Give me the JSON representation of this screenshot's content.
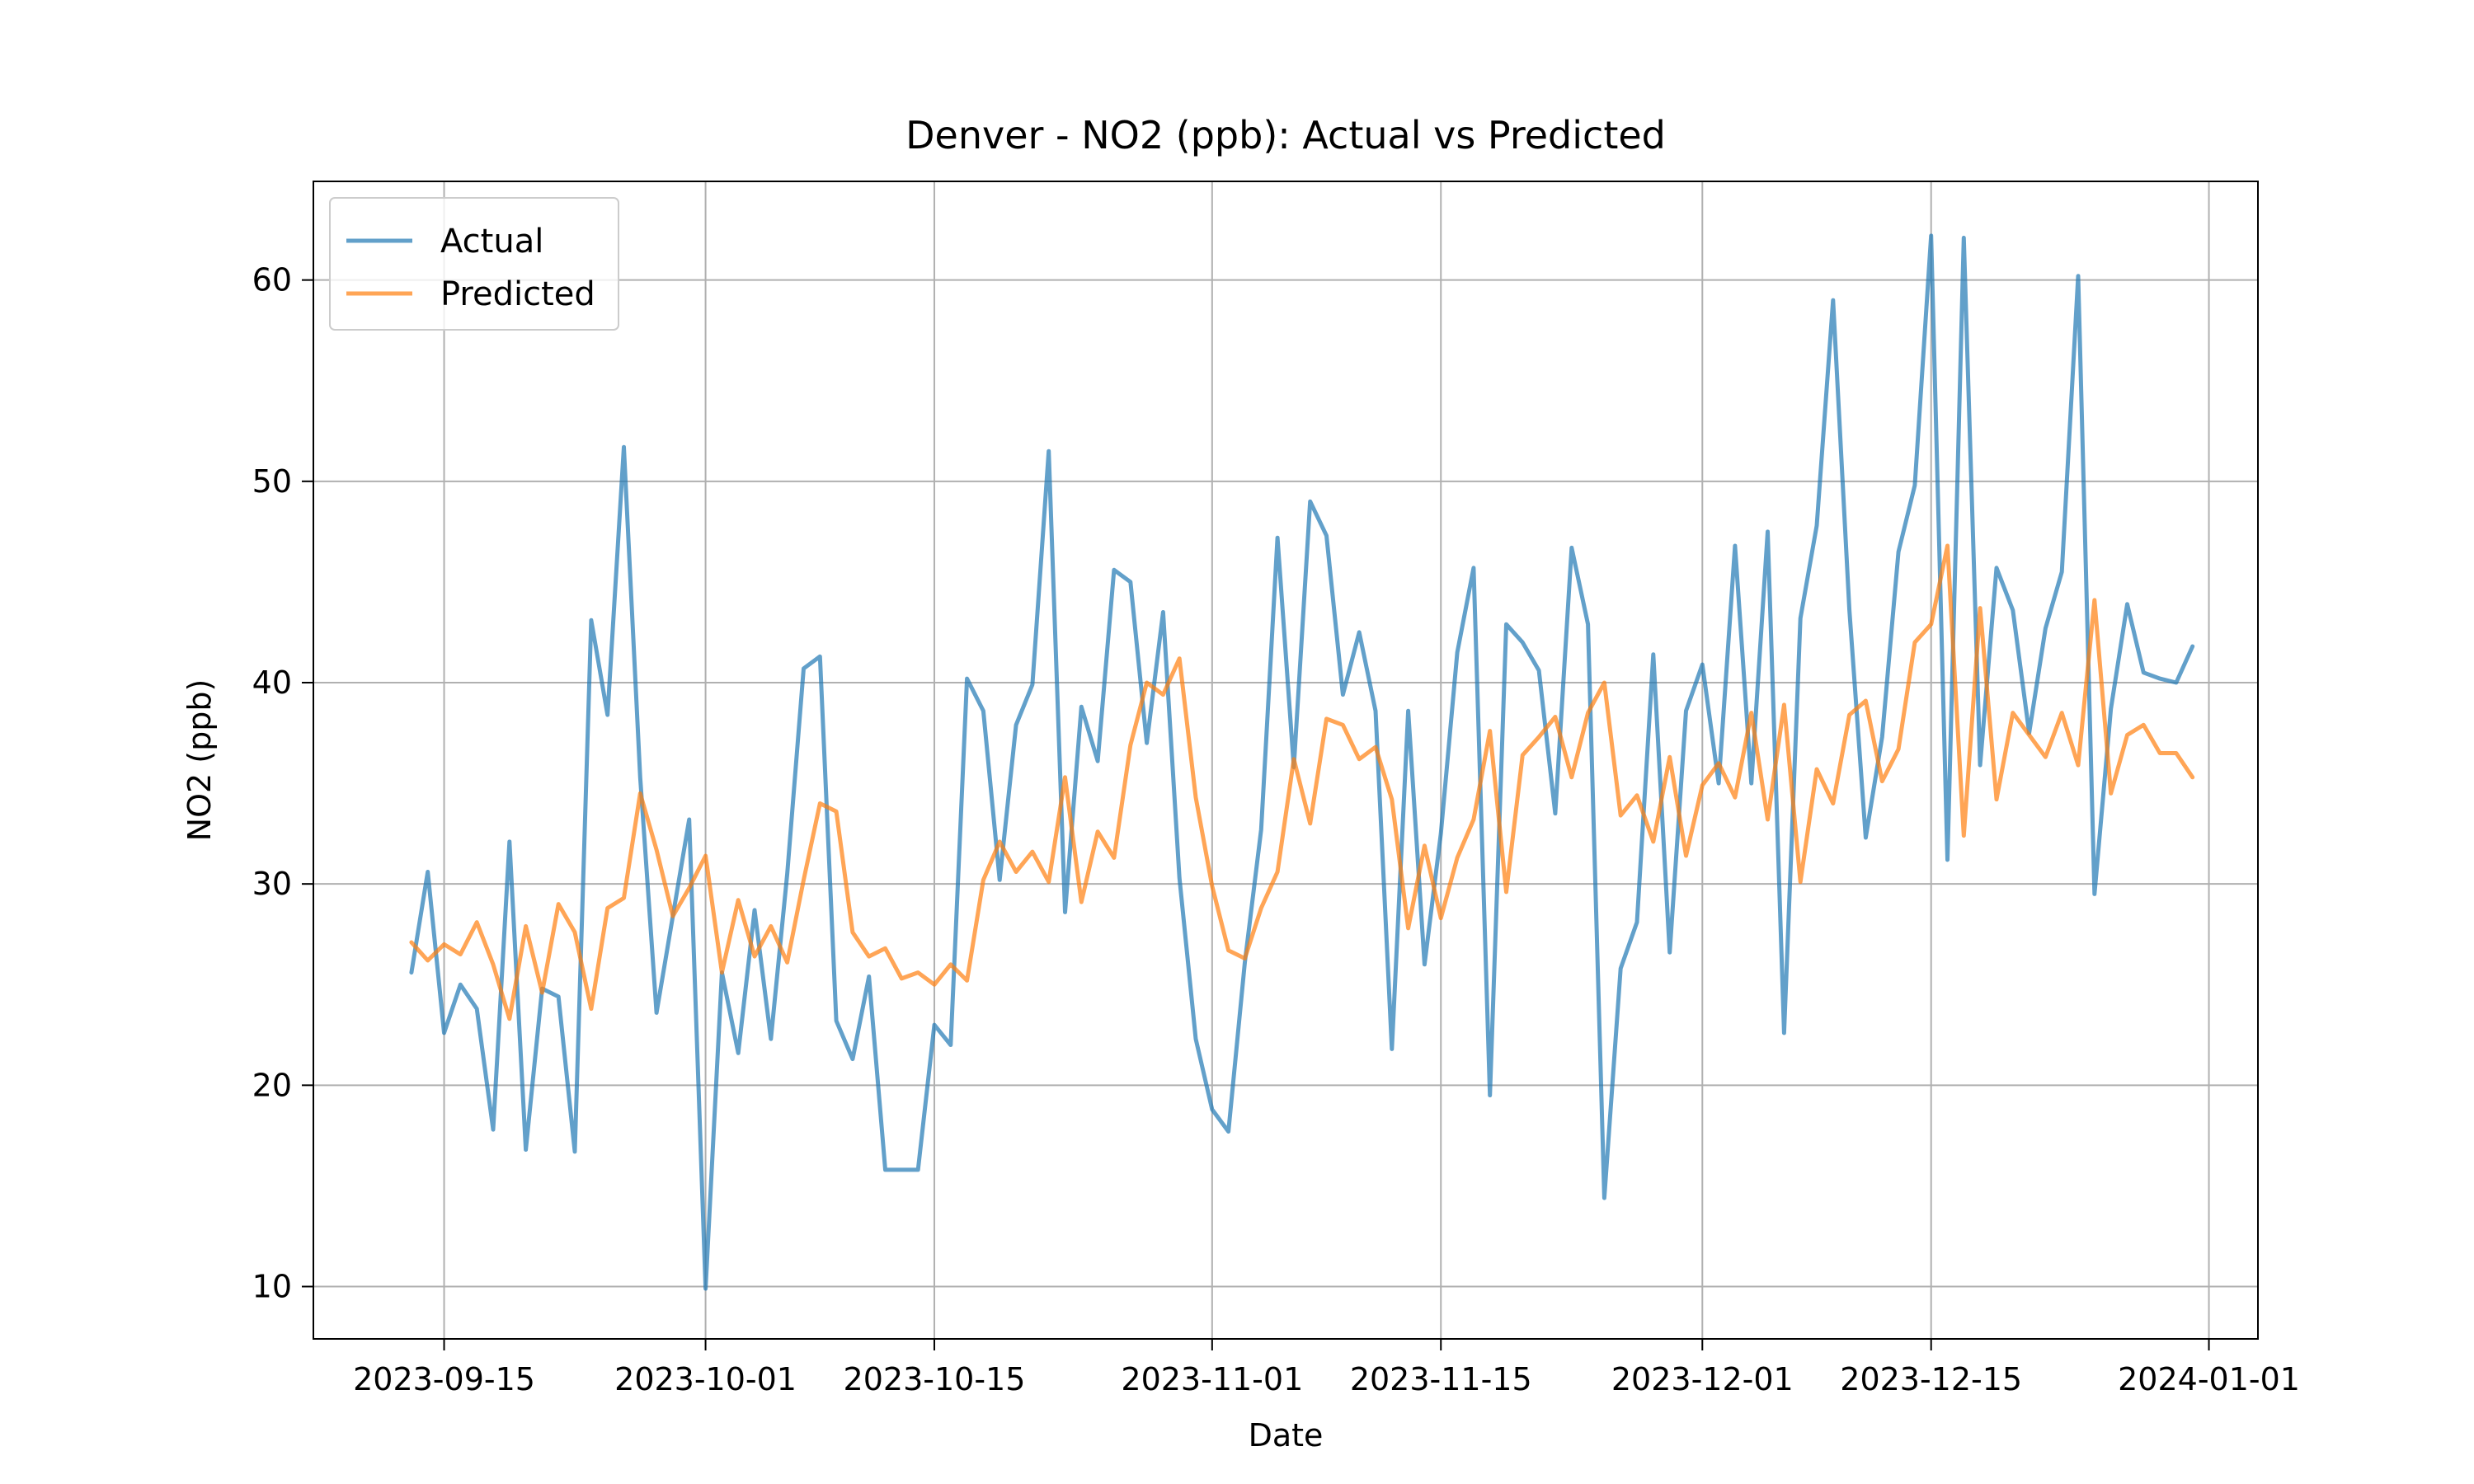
{
  "chart_data": {
    "type": "line",
    "title": "Denver - NO2 (ppb): Actual vs Predicted",
    "xlabel": "Date",
    "ylabel": "NO2 (ppb)",
    "grid": true,
    "legend_position": "top-left",
    "xlim": [
      "2023-09-07",
      "2024-01-04"
    ],
    "ylim": [
      7.4,
      64.9
    ],
    "x_ticks": [
      "2023-09-15",
      "2023-10-01",
      "2023-10-15",
      "2023-11-01",
      "2023-11-15",
      "2023-12-01",
      "2023-12-15",
      "2024-01-01"
    ],
    "y_ticks": [
      10,
      20,
      30,
      40,
      50,
      60
    ],
    "x_start": "2023-09-13",
    "x_end": "2023-12-31",
    "series": [
      {
        "name": "Actual",
        "color": "#1f77b4",
        "values": [
          25.6,
          30.6,
          22.6,
          25.0,
          23.8,
          17.8,
          32.1,
          16.8,
          24.8,
          24.4,
          16.7,
          43.1,
          38.4,
          51.7,
          35.3,
          23.6,
          28.4,
          33.2,
          9.9,
          25.6,
          21.6,
          28.7,
          22.3,
          30.5,
          40.7,
          41.3,
          23.2,
          21.3,
          25.4,
          15.8,
          15.8,
          15.8,
          23.0,
          22.0,
          40.2,
          38.6,
          30.2,
          37.9,
          39.9,
          51.5,
          28.6,
          38.8,
          36.1,
          45.6,
          45.0,
          37.0,
          43.5,
          30.3,
          22.3,
          18.8,
          17.7,
          26.1,
          32.7,
          47.2,
          35.8,
          49.0,
          47.3,
          39.4,
          42.5,
          38.6,
          21.8,
          38.6,
          26.0,
          32.5,
          41.5,
          45.7,
          19.5,
          42.9,
          42.0,
          40.6,
          33.5,
          46.7,
          42.9,
          14.4,
          25.8,
          28.1,
          41.4,
          26.6,
          38.6,
          40.9,
          35.0,
          46.8,
          35.0,
          47.5,
          22.6,
          43.2,
          47.8,
          59.0,
          43.6,
          32.3,
          37.3,
          46.5,
          49.8,
          62.2,
          31.2,
          62.1,
          35.9,
          45.7,
          43.6,
          37.5,
          42.7,
          45.5,
          60.2,
          29.5,
          38.7,
          43.9,
          40.5,
          40.2,
          40.0,
          41.8
        ]
      },
      {
        "name": "Predicted",
        "color": "#ff7f0e",
        "values": [
          27.1,
          26.2,
          27.0,
          26.5,
          28.1,
          26.0,
          23.3,
          27.9,
          24.6,
          29.0,
          27.6,
          23.8,
          28.8,
          29.3,
          34.5,
          31.7,
          28.4,
          29.8,
          31.4,
          25.6,
          29.2,
          26.4,
          27.9,
          26.1,
          30.2,
          34.0,
          33.6,
          27.6,
          26.4,
          26.8,
          25.3,
          25.6,
          25.0,
          26.0,
          25.2,
          30.2,
          32.1,
          30.6,
          31.6,
          30.1,
          35.3,
          29.1,
          32.6,
          31.3,
          36.9,
          40.0,
          39.4,
          41.2,
          34.3,
          29.9,
          26.7,
          26.3,
          28.8,
          30.6,
          36.2,
          33.0,
          38.2,
          37.9,
          36.2,
          36.8,
          34.2,
          27.8,
          31.9,
          28.3,
          31.3,
          33.2,
          37.6,
          29.6,
          36.4,
          37.3,
          38.3,
          35.3,
          38.5,
          40.0,
          33.4,
          34.4,
          32.1,
          36.3,
          31.4,
          34.9,
          36.0,
          34.3,
          38.5,
          33.2,
          38.9,
          30.1,
          35.7,
          34.0,
          38.4,
          39.1,
          35.1,
          36.7,
          42.0,
          42.9,
          46.8,
          32.4,
          43.7,
          34.2,
          38.5,
          37.4,
          36.3,
          38.5,
          35.9,
          44.1,
          34.5,
          37.4,
          37.9,
          36.5,
          36.5,
          35.3
        ]
      }
    ]
  }
}
